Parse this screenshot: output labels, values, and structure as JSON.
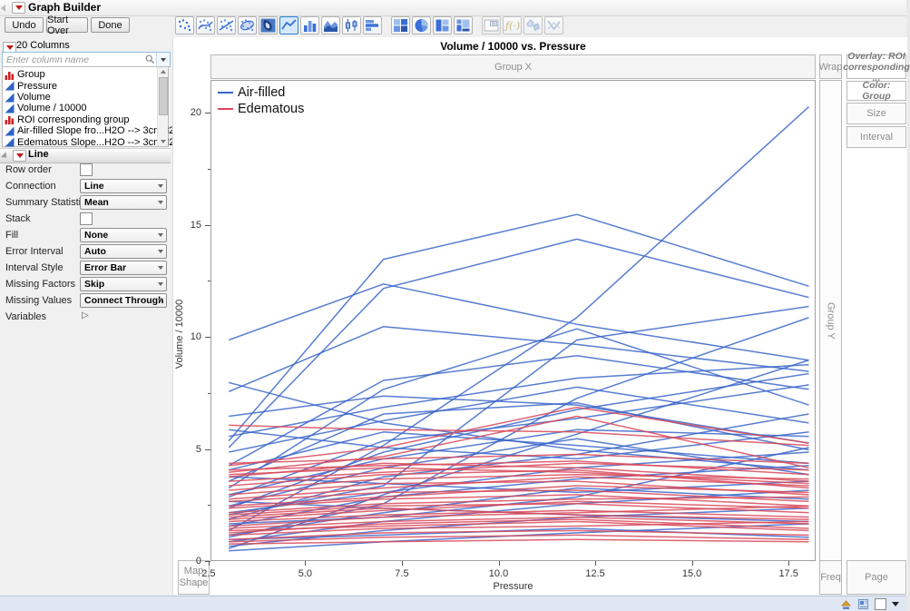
{
  "window": {
    "title": "Graph Builder"
  },
  "toolbar": {
    "buttons": [
      {
        "label": "Undo"
      },
      {
        "label": "Start Over"
      },
      {
        "label": "Done"
      }
    ],
    "icons": [
      {
        "name": "points"
      },
      {
        "name": "smoother"
      },
      {
        "name": "line-of-fit"
      },
      {
        "name": "ellipse"
      },
      {
        "name": "contour"
      },
      {
        "name": "line",
        "selected": true
      },
      {
        "name": "bar"
      },
      {
        "name": "area"
      },
      {
        "name": "box-plot"
      },
      {
        "name": "histogram"
      },
      {
        "name": "heatmap",
        "gap_before": true
      },
      {
        "name": "pie"
      },
      {
        "name": "treemap"
      },
      {
        "name": "mosaic"
      },
      {
        "name": "caption-box",
        "gap_before": true,
        "dim": true
      },
      {
        "name": "formula",
        "dim": true
      },
      {
        "name": "map-shapes",
        "dim": true
      },
      {
        "name": "parallel-plot",
        "dim": true
      }
    ]
  },
  "columns_panel": {
    "header": "20 Columns",
    "search_placeholder": "Enter column name",
    "items": [
      {
        "label": "Group",
        "type": "nominal"
      },
      {
        "label": "Pressure",
        "type": "continuous"
      },
      {
        "label": "Volume",
        "type": "continuous"
      },
      {
        "label": "Volume / 10000",
        "type": "continuous"
      },
      {
        "label": "ROI corresponding group",
        "type": "nominal"
      },
      {
        "label": "Air-filled Slope fro...H2O --> 3cmH2O",
        "type": "continuous"
      },
      {
        "label": "Edematous  Slope...H2O --> 3cmH2O",
        "type": "continuous"
      }
    ]
  },
  "line_panel": {
    "title": "Line",
    "rows": [
      {
        "label": "Row order",
        "control": "checkbox",
        "value": false
      },
      {
        "label": "Connection",
        "control": "select",
        "value": "Line"
      },
      {
        "label": "Summary Statistic",
        "control": "select",
        "value": "Mean"
      },
      {
        "label": "Stack",
        "control": "checkbox",
        "value": false
      },
      {
        "label": "Fill",
        "control": "select",
        "value": "None"
      },
      {
        "label": "Error Interval",
        "control": "select",
        "value": "Auto"
      },
      {
        "label": "Interval Style",
        "control": "select",
        "value": "Error Bar"
      },
      {
        "label": "Missing Factors",
        "control": "select",
        "value": "Skip"
      },
      {
        "label": "Missing Values",
        "control": "select",
        "value": "Connect Through"
      },
      {
        "label": "Variables",
        "control": "expander"
      }
    ]
  },
  "graph": {
    "zones": {
      "group_x": "Group X",
      "wrap": "Wrap",
      "overlay": "Overlay: ROI corresponding ...",
      "color": "Color: Group",
      "size": "Size",
      "interval": "Interval",
      "group_y": "Group Y",
      "map_shape": "Map Shape",
      "freq": "Freq",
      "page": "Page"
    }
  },
  "chart_data": {
    "type": "line",
    "title": "Volume / 10000 vs. Pressure",
    "xlabel": "Pressure",
    "ylabel": "Volume / 10000",
    "grid": false,
    "legend_position": "top-left-inside",
    "x": [
      3,
      7,
      12,
      18
    ],
    "xlim": [
      2.55,
      18.2
    ],
    "ylim": [
      0,
      21.46
    ],
    "xticks": {
      "values": [
        2.5,
        5,
        7.5,
        10,
        12.5,
        15,
        17.5
      ],
      "labels": [
        "2.5",
        "5.0",
        "7.5",
        "10.0",
        "12.5",
        "15.0",
        "17.5"
      ]
    },
    "yticks": {
      "values": [
        0,
        5,
        10,
        15,
        20
      ],
      "labels": [
        "0",
        "5",
        "10",
        "15",
        "20"
      ]
    },
    "yticks_minor": [
      2.5,
      7.5,
      12.5,
      17.5
    ],
    "series": [
      {
        "name": "Air-filled",
        "color": "#3B66C9",
        "lines": [
          [
            1.4,
            5.2,
            10.9,
            20.3
          ],
          [
            5.4,
            13.5,
            15.5,
            12.3
          ],
          [
            5.1,
            12.2,
            14.4,
            11.8
          ],
          [
            9.9,
            12.4,
            10.6,
            9.0
          ],
          [
            7.6,
            10.5,
            9.7,
            8.5
          ],
          [
            2.1,
            3.4,
            9.9,
            11.4
          ],
          [
            1.1,
            2.6,
            7.3,
            10.9
          ],
          [
            3.3,
            7.7,
            10.4,
            7.0
          ],
          [
            4.3,
            8.1,
            9.2,
            7.7
          ],
          [
            5.6,
            6.9,
            8.2,
            8.8
          ],
          [
            6.5,
            7.4,
            7.0,
            5.3
          ],
          [
            4.9,
            6.3,
            7.8,
            6.2
          ],
          [
            3.6,
            6.6,
            7.1,
            5.0
          ],
          [
            2.9,
            5.4,
            6.4,
            7.9
          ],
          [
            4.1,
            5.8,
            5.2,
            4.4
          ],
          [
            3.0,
            4.6,
            5.9,
            5.6
          ],
          [
            2.5,
            4.2,
            5.5,
            3.9
          ],
          [
            5.9,
            5.1,
            4.6,
            5.8
          ],
          [
            1.9,
            3.8,
            4.8,
            6.6
          ],
          [
            2.2,
            3.1,
            4.2,
            4.9
          ],
          [
            1.6,
            2.9,
            3.7,
            4.3
          ],
          [
            3.8,
            3.5,
            3.1,
            3.6
          ],
          [
            1.2,
            2.2,
            3.3,
            2.8
          ],
          [
            0.9,
            1.8,
            2.6,
            3.2
          ],
          [
            2.7,
            2.4,
            2.1,
            1.8
          ],
          [
            0.7,
            1.4,
            2.0,
            2.4
          ],
          [
            1.0,
            1.2,
            1.5,
            1.1
          ],
          [
            0.5,
            0.9,
            1.3,
            1.7
          ],
          [
            8.0,
            6.2,
            5.0,
            4.1
          ],
          [
            0.6,
            3.0,
            5.7,
            9.0
          ],
          [
            2.4,
            4.9,
            6.8,
            8.4
          ],
          [
            1.7,
            2.0,
            2.9,
            5.1
          ]
        ]
      },
      {
        "name": "Edematous",
        "color": "#D9495B",
        "lines": [
          [
            6.1,
            5.9,
            5.8,
            5.2
          ],
          [
            4.3,
            5.1,
            6.9,
            5.3
          ],
          [
            4.0,
            4.7,
            6.5,
            4.2
          ],
          [
            4.4,
            4.6,
            4.8,
            4.4
          ],
          [
            4.1,
            4.3,
            4.5,
            3.9
          ],
          [
            3.8,
            4.4,
            4.2,
            3.6
          ],
          [
            3.6,
            4.0,
            4.4,
            4.1
          ],
          [
            3.4,
            3.9,
            4.1,
            3.3
          ],
          [
            3.2,
            3.7,
            3.9,
            3.7
          ],
          [
            3.0,
            3.5,
            3.6,
            3.0
          ],
          [
            2.8,
            3.3,
            3.8,
            3.4
          ],
          [
            2.7,
            3.1,
            3.2,
            2.7
          ],
          [
            2.5,
            2.9,
            3.4,
            3.1
          ],
          [
            2.4,
            2.8,
            3.0,
            2.5
          ],
          [
            2.2,
            2.6,
            2.8,
            2.9
          ],
          [
            2.1,
            2.5,
            2.6,
            2.2
          ],
          [
            1.9,
            2.3,
            2.7,
            2.4
          ],
          [
            1.8,
            2.1,
            2.3,
            2.0
          ],
          [
            1.6,
            2.0,
            2.2,
            2.5
          ],
          [
            1.5,
            1.8,
            2.0,
            1.7
          ],
          [
            1.3,
            1.7,
            1.9,
            1.5
          ],
          [
            1.2,
            1.5,
            1.6,
            1.8
          ],
          [
            1.0,
            1.3,
            1.4,
            1.2
          ],
          [
            0.9,
            1.1,
            1.2,
            1.0
          ],
          [
            0.8,
            0.9,
            1.0,
            0.9
          ],
          [
            2.0,
            2.4,
            2.1,
            1.9
          ],
          [
            3.9,
            4.2,
            4.0,
            3.5
          ],
          [
            1.4,
            1.6,
            1.8,
            1.4
          ]
        ]
      }
    ]
  }
}
